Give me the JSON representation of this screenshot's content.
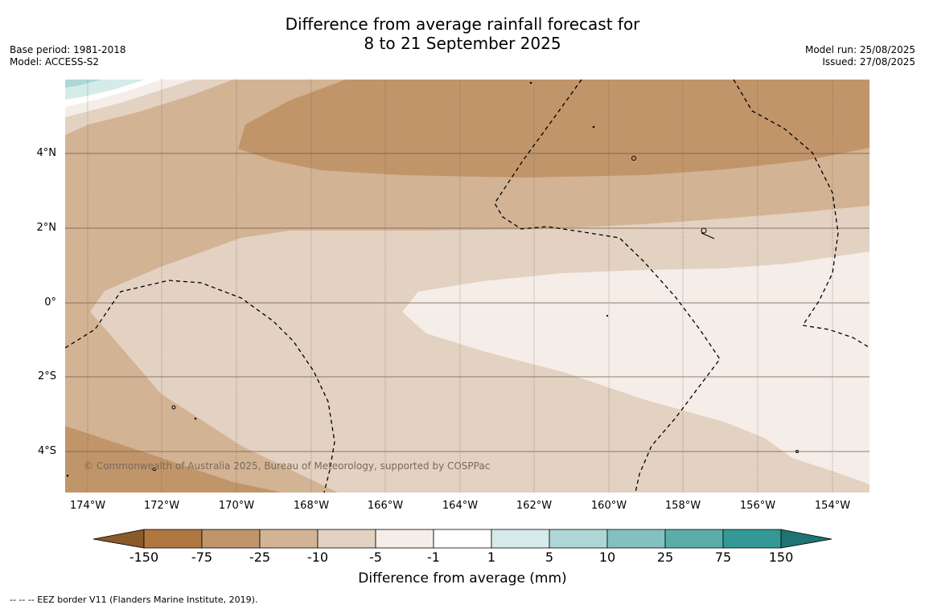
{
  "title": {
    "line1": "Difference from average rainfall forecast for",
    "line2": "8 to 21 September 2025"
  },
  "meta_left": {
    "base_period": "Base period: 1981-2018",
    "model": "Model: ACCESS-S2"
  },
  "meta_right": {
    "model_run": "Model run: 25/08/2025",
    "issued": "Issued: 27/08/2025"
  },
  "map": {
    "lat_labels": [
      "4°N",
      "2°N",
      "0°",
      "2°S",
      "4°S"
    ],
    "lon_labels": [
      "174°W",
      "172°W",
      "170°W",
      "168°W",
      "166°W",
      "164°W",
      "162°W",
      "160°W",
      "158°W",
      "156°W",
      "154°W"
    ],
    "copyright": "© Commonwealth of Australia 2025, Bureau of Meteorology, supported by COSPPac"
  },
  "colorbar": {
    "ticks": [
      "-150",
      "-75",
      "-25",
      "-10",
      "-5",
      "-1",
      "1",
      "5",
      "10",
      "25",
      "75",
      "150"
    ],
    "colors": [
      "#8b5a2b",
      "#b07840",
      "#c1956a",
      "#d2b394",
      "#e3d1c2",
      "#f5ede8",
      "#ffffff",
      "#d5ebea",
      "#acd7d6",
      "#82c1bf",
      "#5aadaa",
      "#349896",
      "#1e7472"
    ],
    "label": "Difference from average (mm)"
  },
  "footer": "--  --  -- EEZ border V11 (Flanders Marine Institute, 2019)."
}
